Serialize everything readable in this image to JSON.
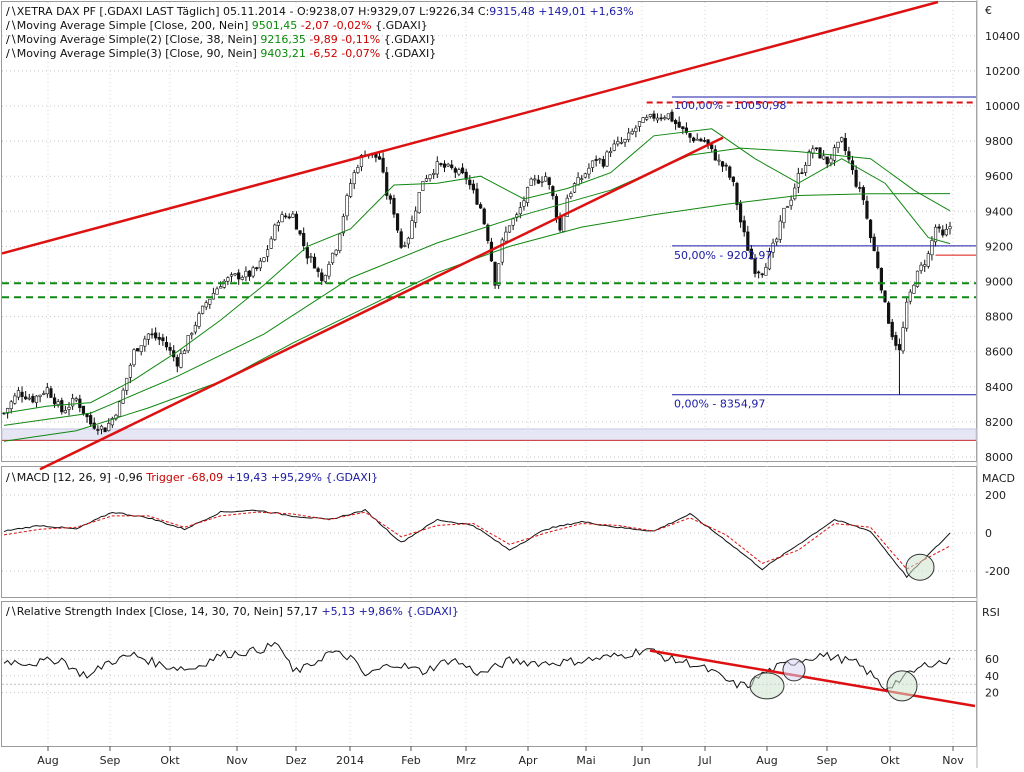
{
  "main_panel": {
    "legend": [
      {
        "icon": "line-symbol-icon",
        "prefix": "XETRA DAX PF [.GDAXI LAST Täglich] 05.11.2014 - O:9238,07 H:9329,07 L:9226,34 C:",
        "value": "9315,48 +149,01 +1,63%",
        "value_color": "#1a1aa6"
      },
      {
        "icon": "line-symbol-icon",
        "prefix": "Moving Average Simple [Close, 200, Nein] ",
        "value": "9501,45",
        "value_color": "#0a8a0a",
        "change": " -2,07 -0,02%",
        "change_color": "#cc0000",
        "suffix": " {.GDAXI}"
      },
      {
        "icon": "line-symbol-icon",
        "prefix": "Moving Average Simple(2) [Close, 38, Nein] ",
        "value": "9216,35",
        "value_color": "#0a8a0a",
        "change": " -9,89 -0,11%",
        "change_color": "#cc0000",
        "suffix": " {.GDAXI}"
      },
      {
        "icon": "line-symbol-icon",
        "prefix": "Moving Average Simple(3) [Close, 90, Nein] ",
        "value": "9403,21",
        "value_color": "#0a8a0a",
        "change": " -6,52 -0,07%",
        "change_color": "#cc0000",
        "suffix": " {.GDAXI}"
      }
    ],
    "currency": "€",
    "fib_labels": [
      "100,00% - 10050,98",
      "50,00% - 9202,97",
      "0,00% - 8354,97"
    ]
  },
  "macd_panel": {
    "legend": {
      "prefix": "MACD [12, 26, 9] -0,96 ",
      "trigger": "Trigger -68,09",
      "rest": " +19,43 +95,29% {.GDAXI}"
    },
    "axis_title": "MACD"
  },
  "rsi_panel": {
    "legend": {
      "prefix": "Relative Strength Index [Close, 14, 30, 70, Nein] ",
      "value": "57,17",
      "rest": " +5,13 +9,86% {.GDAXI}"
    },
    "axis_title": "RSI"
  },
  "colors": {
    "trend": "#dd1111",
    "ma": "#118811",
    "fib": "#1a1aa6",
    "support": "#118811",
    "candle": "#111111",
    "macd": "#111111",
    "trigger": "#dd1111",
    "band": "#e6e6f5"
  },
  "chart_data": [
    {
      "type": "candlestick",
      "title": "XETRA DAX PF [.GDAXI LAST Täglich]",
      "x_labels": [
        "Aug",
        "Sep",
        "Okt",
        "Nov",
        "Dez",
        "2014",
        "Feb",
        "Mrz",
        "Apr",
        "Mai",
        "Jun",
        "Jul",
        "Aug",
        "Sep",
        "Okt",
        "Nov"
      ],
      "y_ticks": [
        8000,
        8200,
        8400,
        8600,
        8800,
        9000,
        9200,
        9400,
        9600,
        9800,
        10000,
        10200,
        10400
      ],
      "ylim": [
        7950,
        10600
      ],
      "last_close": 9315.48,
      "close_path": [
        [
          0,
          8250
        ],
        [
          4,
          8370
        ],
        [
          8,
          8330
        ],
        [
          12,
          8390
        ],
        [
          16,
          8260
        ],
        [
          20,
          8330
        ],
        [
          24,
          8190
        ],
        [
          28,
          8160
        ],
        [
          30,
          8220
        ],
        [
          32,
          8300
        ],
        [
          36,
          8600
        ],
        [
          40,
          8700
        ],
        [
          44,
          8660
        ],
        [
          48,
          8540
        ],
        [
          50,
          8620
        ],
        [
          52,
          8720
        ],
        [
          56,
          8880
        ],
        [
          60,
          8990
        ],
        [
          64,
          9030
        ],
        [
          68,
          9040
        ],
        [
          70,
          9070
        ],
        [
          72,
          9130
        ],
        [
          76,
          9360
        ],
        [
          80,
          9380
        ],
        [
          84,
          9150
        ],
        [
          86,
          9100
        ],
        [
          88,
          9000
        ],
        [
          90,
          9120
        ],
        [
          92,
          9200
        ],
        [
          96,
          9560
        ],
        [
          98,
          9670
        ],
        [
          100,
          9740
        ],
        [
          104,
          9700
        ],
        [
          106,
          9500
        ],
        [
          108,
          9400
        ],
        [
          110,
          9200
        ],
        [
          112,
          9260
        ],
        [
          116,
          9580
        ],
        [
          120,
          9660
        ],
        [
          124,
          9640
        ],
        [
          128,
          9590
        ],
        [
          132,
          9420
        ],
        [
          134,
          9250
        ],
        [
          136,
          9000
        ],
        [
          138,
          9220
        ],
        [
          140,
          9330
        ],
        [
          142,
          9370
        ],
        [
          146,
          9560
        ],
        [
          150,
          9600
        ],
        [
          152,
          9480
        ],
        [
          154,
          9290
        ],
        [
          156,
          9480
        ],
        [
          158,
          9550
        ],
        [
          160,
          9590
        ],
        [
          164,
          9700
        ],
        [
          166,
          9680
        ],
        [
          168,
          9760
        ],
        [
          172,
          9800
        ],
        [
          176,
          9900
        ],
        [
          180,
          9940
        ],
        [
          184,
          9950
        ],
        [
          186,
          9900
        ],
        [
          190,
          9820
        ],
        [
          194,
          9800
        ],
        [
          196,
          9740
        ],
        [
          198,
          9680
        ],
        [
          200,
          9640
        ],
        [
          202,
          9550
        ],
        [
          204,
          9340
        ],
        [
          206,
          9190
        ],
        [
          208,
          9070
        ],
        [
          210,
          9060
        ],
        [
          212,
          9150
        ],
        [
          214,
          9240
        ],
        [
          216,
          9400
        ],
        [
          218,
          9480
        ],
        [
          220,
          9600
        ],
        [
          224,
          9760
        ],
        [
          228,
          9680
        ],
        [
          232,
          9800
        ],
        [
          234,
          9690
        ],
        [
          236,
          9560
        ],
        [
          238,
          9470
        ],
        [
          240,
          9250
        ],
        [
          242,
          9090
        ],
        [
          244,
          8860
        ],
        [
          246,
          8700
        ],
        [
          248,
          8600
        ],
        [
          250,
          8860
        ],
        [
          252,
          9000
        ],
        [
          254,
          9080
        ],
        [
          256,
          9150
        ],
        [
          258,
          9310
        ],
        [
          260,
          9250
        ],
        [
          262,
          9315
        ]
      ],
      "ma_200": [
        [
          0,
          8090
        ],
        [
          20,
          8150
        ],
        [
          40,
          8280
        ],
        [
          60,
          8430
        ],
        [
          80,
          8650
        ],
        [
          100,
          8850
        ],
        [
          120,
          9050
        ],
        [
          140,
          9200
        ],
        [
          160,
          9310
        ],
        [
          180,
          9380
        ],
        [
          200,
          9440
        ],
        [
          220,
          9490
        ],
        [
          240,
          9500
        ],
        [
          262,
          9501
        ]
      ],
      "ma_38": [
        [
          0,
          8250
        ],
        [
          12,
          8290
        ],
        [
          24,
          8310
        ],
        [
          36,
          8440
        ],
        [
          48,
          8600
        ],
        [
          60,
          8780
        ],
        [
          72,
          8980
        ],
        [
          84,
          9200
        ],
        [
          96,
          9300
        ],
        [
          108,
          9550
        ],
        [
          120,
          9560
        ],
        [
          132,
          9600
        ],
        [
          144,
          9470
        ],
        [
          156,
          9530
        ],
        [
          168,
          9620
        ],
        [
          180,
          9830
        ],
        [
          196,
          9870
        ],
        [
          208,
          9700
        ],
        [
          220,
          9560
        ],
        [
          232,
          9700
        ],
        [
          244,
          9560
        ],
        [
          256,
          9250
        ],
        [
          262,
          9216
        ]
      ],
      "ma_90": [
        [
          0,
          8180
        ],
        [
          24,
          8250
        ],
        [
          48,
          8460
        ],
        [
          72,
          8700
        ],
        [
          96,
          9020
        ],
        [
          120,
          9220
        ],
        [
          144,
          9380
        ],
        [
          168,
          9520
        ],
        [
          190,
          9720
        ],
        [
          204,
          9760
        ],
        [
          220,
          9740
        ],
        [
          240,
          9700
        ],
        [
          252,
          9520
        ],
        [
          262,
          9403
        ]
      ],
      "support_lines": [
        8990,
        8910
      ],
      "fibonacci": [
        {
          "label": "100,00%",
          "value": 10050.98
        },
        {
          "label": "50,00%",
          "value": 9202.97
        },
        {
          "label": "0,00%",
          "value": 8354.97
        }
      ]
    },
    {
      "type": "line",
      "title": "MACD [12, 26, 9]",
      "y_ticks": [
        200,
        0,
        -200
      ],
      "ylim": [
        -260,
        260
      ],
      "series": [
        {
          "name": "MACD",
          "values": [
            [
              0,
              10
            ],
            [
              10,
              40
            ],
            [
              20,
              20
            ],
            [
              30,
              110
            ],
            [
              40,
              80
            ],
            [
              50,
              20
            ],
            [
              60,
              110
            ],
            [
              70,
              120
            ],
            [
              80,
              90
            ],
            [
              90,
              70
            ],
            [
              100,
              120
            ],
            [
              110,
              -50
            ],
            [
              120,
              70
            ],
            [
              130,
              40
            ],
            [
              140,
              -90
            ],
            [
              150,
              20
            ],
            [
              160,
              60
            ],
            [
              170,
              30
            ],
            [
              180,
              10
            ],
            [
              190,
              100
            ],
            [
              200,
              -40
            ],
            [
              210,
              -190
            ],
            [
              220,
              -60
            ],
            [
              230,
              70
            ],
            [
              240,
              10
            ],
            [
              250,
              -230
            ],
            [
              262,
              -1
            ]
          ]
        },
        {
          "name": "Trigger",
          "values": [
            [
              0,
              -10
            ],
            [
              10,
              20
            ],
            [
              20,
              30
            ],
            [
              30,
              90
            ],
            [
              40,
              90
            ],
            [
              50,
              30
            ],
            [
              60,
              90
            ],
            [
              70,
              110
            ],
            [
              80,
              100
            ],
            [
              90,
              70
            ],
            [
              100,
              110
            ],
            [
              110,
              -20
            ],
            [
              120,
              40
            ],
            [
              130,
              50
            ],
            [
              140,
              -60
            ],
            [
              150,
              0
            ],
            [
              160,
              50
            ],
            [
              170,
              40
            ],
            [
              180,
              10
            ],
            [
              190,
              80
            ],
            [
              200,
              -10
            ],
            [
              210,
              -160
            ],
            [
              220,
              -90
            ],
            [
              230,
              50
            ],
            [
              240,
              30
            ],
            [
              250,
              -190
            ],
            [
              262,
              -68
            ]
          ]
        }
      ]
    },
    {
      "type": "line",
      "title": "Relative Strength Index [Close, 14, 30, 70, Nein]",
      "y_ticks": [
        60,
        40,
        20
      ],
      "ylim": [
        5,
        85
      ],
      "series": [
        {
          "name": "RSI",
          "values": [
            [
              0,
              58
            ],
            [
              8,
              55
            ],
            [
              16,
              60
            ],
            [
              20,
              45
            ],
            [
              24,
              40
            ],
            [
              28,
              55
            ],
            [
              36,
              65
            ],
            [
              44,
              52
            ],
            [
              52,
              48
            ],
            [
              60,
              65
            ],
            [
              70,
              70
            ],
            [
              76,
              78
            ],
            [
              80,
              45
            ],
            [
              84,
              50
            ],
            [
              90,
              68
            ],
            [
              96,
              62
            ],
            [
              100,
              40
            ],
            [
              108,
              55
            ],
            [
              116,
              45
            ],
            [
              124,
              60
            ],
            [
              132,
              42
            ],
            [
              140,
              58
            ],
            [
              150,
              55
            ],
            [
              160,
              58
            ],
            [
              172,
              65
            ],
            [
              178,
              72
            ],
            [
              184,
              60
            ],
            [
              190,
              55
            ],
            [
              196,
              45
            ],
            [
              202,
              30
            ],
            [
              206,
              28
            ],
            [
              210,
              42
            ],
            [
              214,
              50
            ],
            [
              220,
              58
            ],
            [
              226,
              65
            ],
            [
              232,
              60
            ],
            [
              236,
              55
            ],
            [
              240,
              42
            ],
            [
              244,
              25
            ],
            [
              250,
              40
            ],
            [
              256,
              55
            ],
            [
              262,
              57
            ]
          ]
        }
      ]
    }
  ]
}
